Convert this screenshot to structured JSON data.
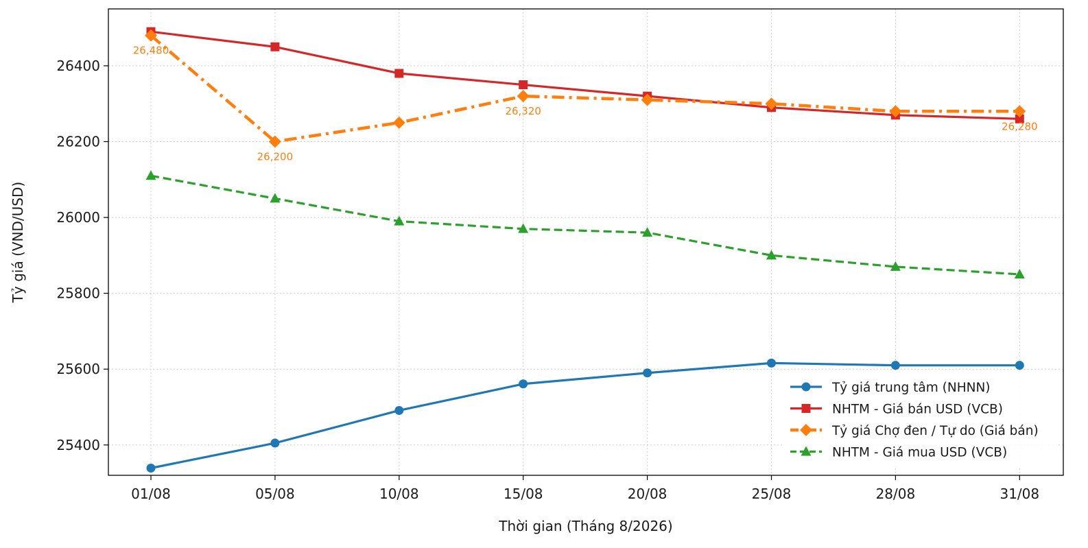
{
  "chart_data": {
    "type": "line",
    "xlabel": "Thời gian (Tháng 8/2026)",
    "ylabel": "Tỷ giá (VND/USD)",
    "categories": [
      "01/08",
      "05/08",
      "10/08",
      "15/08",
      "20/08",
      "25/08",
      "28/08",
      "31/08"
    ],
    "ylim": [
      25320,
      26550
    ],
    "yticks": [
      25400,
      25600,
      25800,
      26000,
      26200,
      26400
    ],
    "grid": true,
    "legend_position": "lower-right",
    "series": [
      {
        "name": "Tỷ giá trung tâm (NHNN)",
        "color": "#1f77b4",
        "marker": "circle",
        "linestyle": "solid",
        "values": [
          25339,
          25405,
          25491,
          25561,
          25590,
          25616,
          25610,
          25610
        ]
      },
      {
        "name": "NHTM - Giá bán USD (VCB)",
        "color": "#d62728",
        "marker": "square",
        "linestyle": "solid",
        "values": [
          26490,
          26450,
          26380,
          26350,
          26320,
          26290,
          26270,
          26260
        ]
      },
      {
        "name": "Tỷ giá Chợ đen / Tự do (Giá bán)",
        "color": "#ff7f0e",
        "marker": "diamond",
        "linestyle": "dashdot",
        "values": [
          26480,
          26200,
          26250,
          26320,
          26310,
          26300,
          26280,
          26280
        ]
      },
      {
        "name": "NHTM - Giá mua USD (VCB)",
        "color": "#2ca02c",
        "marker": "triangle",
        "linestyle": "dashed",
        "values": [
          26110,
          26050,
          25990,
          25970,
          25960,
          25900,
          25870,
          25850
        ]
      }
    ],
    "annotations": [
      {
        "text": "26,480",
        "series": 2,
        "index": 0,
        "color": "#ff7f0e"
      },
      {
        "text": "26,200",
        "series": 2,
        "index": 1,
        "color": "#ff7f0e"
      },
      {
        "text": "26,320",
        "series": 2,
        "index": 3,
        "color": "#ff7f0e"
      },
      {
        "text": "26,280",
        "series": 2,
        "index": 7,
        "color": "#ff7f0e"
      }
    ]
  }
}
